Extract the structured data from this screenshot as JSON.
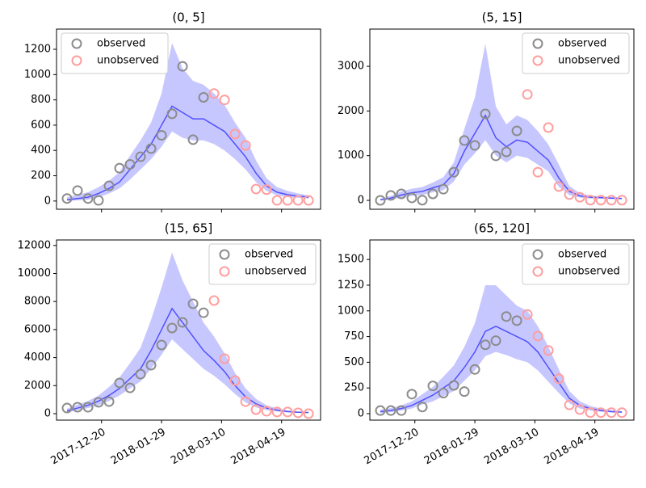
{
  "chart_data": [
    {
      "type": "scatter",
      "title": "(0, 5]",
      "x": [
        "2017-11-27",
        "2017-12-04",
        "2017-12-11",
        "2017-12-18",
        "2017-12-25",
        "2018-01-01",
        "2018-01-08",
        "2018-01-15",
        "2018-01-22",
        "2018-01-29",
        "2018-02-05",
        "2018-02-12",
        "2018-02-19",
        "2018-02-26",
        "2018-03-05",
        "2018-03-12",
        "2018-03-19",
        "2018-03-26",
        "2018-04-02",
        "2018-04-09",
        "2018-04-16",
        "2018-04-23",
        "2018-04-30",
        "2018-05-07"
      ],
      "series": [
        {
          "name": "observed",
          "color": "#8c8c8c",
          "values": [
            20,
            83,
            20,
            5,
            120,
            260,
            290,
            350,
            415,
            520,
            690,
            1065,
            485,
            820,
            null,
            null,
            null,
            null,
            null,
            null,
            null,
            null,
            null,
            null
          ]
        },
        {
          "name": "unobserved",
          "color": "#ff9e9e",
          "values": [
            null,
            null,
            null,
            null,
            null,
            null,
            null,
            null,
            null,
            null,
            null,
            null,
            null,
            null,
            850,
            800,
            530,
            440,
            95,
            90,
            5,
            5,
            5,
            5
          ]
        }
      ],
      "band": {
        "color": "#0000ff",
        "lower": [
          0,
          5,
          10,
          30,
          60,
          100,
          170,
          250,
          330,
          430,
          550,
          500,
          480,
          480,
          450,
          400,
          330,
          250,
          150,
          80,
          45,
          30,
          25,
          20
        ],
        "values": [
          10,
          20,
          30,
          60,
          100,
          150,
          250,
          350,
          450,
          600,
          750,
          700,
          650,
          650,
          600,
          550,
          450,
          350,
          220,
          120,
          70,
          50,
          40,
          30
        ],
        "upper": [
          30,
          50,
          70,
          110,
          160,
          230,
          360,
          480,
          620,
          850,
          1250,
          1050,
          950,
          920,
          850,
          760,
          620,
          500,
          320,
          180,
          110,
          80,
          60,
          45
        ]
      },
      "xlim": [
        "2017-11-20",
        "2018-05-15"
      ],
      "xticks": [
        "2017-12-20",
        "2018-01-29",
        "2018-03-10",
        "2018-04-19"
      ],
      "xtick_labels": false,
      "ylim": [
        -65,
        1360
      ],
      "yticks": [
        0,
        200,
        400,
        600,
        800,
        1000,
        1200
      ],
      "legend": "upper left"
    },
    {
      "type": "scatter",
      "title": "(5, 15]",
      "x": [
        "2017-11-27",
        "2017-12-04",
        "2017-12-11",
        "2017-12-18",
        "2017-12-25",
        "2018-01-01",
        "2018-01-08",
        "2018-01-15",
        "2018-01-22",
        "2018-01-29",
        "2018-02-05",
        "2018-02-12",
        "2018-02-19",
        "2018-02-26",
        "2018-03-05",
        "2018-03-12",
        "2018-03-19",
        "2018-03-26",
        "2018-04-02",
        "2018-04-09",
        "2018-04-16",
        "2018-04-23",
        "2018-04-30",
        "2018-05-07"
      ],
      "series": [
        {
          "name": "observed",
          "color": "#8c8c8c",
          "values": [
            0,
            110,
            145,
            55,
            5,
            145,
            250,
            630,
            1340,
            1230,
            1935,
            995,
            1085,
            1555,
            null,
            null,
            null,
            null,
            null,
            null,
            null,
            null,
            null,
            null
          ]
        },
        {
          "name": "unobserved",
          "color": "#ff9e9e",
          "values": [
            null,
            null,
            null,
            null,
            null,
            null,
            null,
            null,
            null,
            null,
            null,
            null,
            null,
            null,
            2370,
            630,
            1630,
            310,
            130,
            70,
            5,
            5,
            5,
            5
          ]
        }
      ],
      "band": {
        "color": "#0000ff",
        "lower": [
          0,
          20,
          60,
          100,
          120,
          180,
          230,
          420,
          800,
          1050,
          1350,
          1000,
          850,
          1000,
          950,
          800,
          650,
          300,
          120,
          60,
          40,
          35,
          30,
          25
        ],
        "values": [
          10,
          50,
          120,
          170,
          200,
          280,
          350,
          600,
          1100,
          1500,
          1900,
          1400,
          1200,
          1350,
          1300,
          1100,
          900,
          500,
          200,
          100,
          70,
          60,
          50,
          40
        ],
        "upper": [
          40,
          100,
          200,
          260,
          300,
          400,
          520,
          850,
          1600,
          2300,
          3500,
          2100,
          1700,
          1900,
          1800,
          1550,
          1250,
          800,
          320,
          160,
          110,
          90,
          75,
          60
        ]
      },
      "xlim": [
        "2017-11-20",
        "2018-05-15"
      ],
      "xticks": [
        "2017-12-20",
        "2018-01-29",
        "2018-03-10",
        "2018-04-19"
      ],
      "xtick_labels": false,
      "ylim": [
        -199,
        3833
      ],
      "yticks": [
        0,
        1000,
        2000,
        3000
      ],
      "legend": "upper right"
    },
    {
      "type": "scatter",
      "title": "(15, 65]",
      "x": [
        "2017-11-27",
        "2017-12-04",
        "2017-12-11",
        "2017-12-18",
        "2017-12-25",
        "2018-01-01",
        "2018-01-08",
        "2018-01-15",
        "2018-01-22",
        "2018-01-29",
        "2018-02-05",
        "2018-02-12",
        "2018-02-19",
        "2018-02-26",
        "2018-03-05",
        "2018-03-12",
        "2018-03-19",
        "2018-03-26",
        "2018-04-02",
        "2018-04-09",
        "2018-04-16",
        "2018-04-23",
        "2018-04-30",
        "2018-05-07"
      ],
      "series": [
        {
          "name": "observed",
          "color": "#8c8c8c",
          "values": [
            400,
            460,
            460,
            810,
            860,
            2190,
            1840,
            2820,
            3460,
            4900,
            6110,
            6510,
            7840,
            7200,
            null,
            null,
            null,
            null,
            null,
            null,
            null,
            null,
            null,
            null
          ]
        },
        {
          "name": "unobserved",
          "color": "#ff9e9e",
          "values": [
            null,
            null,
            null,
            null,
            null,
            null,
            null,
            null,
            null,
            null,
            null,
            null,
            null,
            null,
            8070,
            3920,
            2360,
            860,
            290,
            170,
            120,
            120,
            60,
            0
          ]
        }
      ],
      "band": {
        "color": "#0000ff",
        "lower": [
          100,
          250,
          400,
          600,
          900,
          1300,
          1800,
          2300,
          3200,
          4200,
          5300,
          4600,
          3900,
          3200,
          2700,
          2100,
          1400,
          800,
          450,
          250,
          150,
          90,
          60,
          50
        ],
        "values": [
          200,
          400,
          600,
          900,
          1300,
          1800,
          2500,
          3200,
          4500,
          6000,
          7500,
          6500,
          5500,
          4500,
          3800,
          3000,
          2000,
          1200,
          700,
          400,
          250,
          150,
          100,
          80
        ],
        "upper": [
          350,
          650,
          900,
          1300,
          1900,
          2600,
          3600,
          4700,
          6700,
          9000,
          11500,
          9500,
          8000,
          6500,
          5500,
          4300,
          2900,
          1800,
          1050,
          600,
          380,
          230,
          160,
          120
        ]
      },
      "xlim": [
        "2017-11-20",
        "2018-05-15"
      ],
      "xticks": [
        "2017-12-20",
        "2018-01-29",
        "2018-03-10",
        "2018-04-19"
      ],
      "xtick_labels": true,
      "ylim": [
        -461,
        12392
      ],
      "yticks": [
        0,
        2000,
        4000,
        6000,
        8000,
        10000,
        12000
      ],
      "legend": "upper right"
    },
    {
      "type": "scatter",
      "title": "(65, 120]",
      "x": [
        "2017-11-27",
        "2017-12-04",
        "2017-12-11",
        "2017-12-18",
        "2017-12-25",
        "2018-01-01",
        "2018-01-08",
        "2018-01-15",
        "2018-01-22",
        "2018-01-29",
        "2018-02-05",
        "2018-02-12",
        "2018-02-19",
        "2018-02-26",
        "2018-03-05",
        "2018-03-12",
        "2018-03-19",
        "2018-03-26",
        "2018-04-02",
        "2018-04-09",
        "2018-04-16",
        "2018-04-23",
        "2018-04-30",
        "2018-05-07"
      ],
      "series": [
        {
          "name": "observed",
          "color": "#8c8c8c",
          "values": [
            30,
            30,
            30,
            190,
            65,
            270,
            200,
            275,
            215,
            430,
            670,
            710,
            945,
            905,
            null,
            null,
            null,
            null,
            null,
            null,
            null,
            null,
            null,
            null
          ]
        },
        {
          "name": "unobserved",
          "color": "#ff9e9e",
          "values": [
            null,
            null,
            null,
            null,
            null,
            null,
            null,
            null,
            null,
            null,
            null,
            null,
            null,
            null,
            965,
            755,
            615,
            340,
            85,
            40,
            10,
            10,
            10,
            10
          ]
        }
      ],
      "band": {
        "color": "#0000ff",
        "lower": [
          5,
          15,
          30,
          50,
          90,
          120,
          170,
          220,
          320,
          420,
          560,
          600,
          570,
          530,
          500,
          420,
          310,
          200,
          100,
          50,
          30,
          20,
          12,
          8
        ],
        "values": [
          20,
          30,
          50,
          80,
          130,
          180,
          250,
          320,
          450,
          600,
          800,
          850,
          800,
          750,
          700,
          600,
          450,
          300,
          150,
          80,
          50,
          30,
          20,
          15
        ],
        "upper": [
          40,
          55,
          80,
          120,
          190,
          260,
          360,
          470,
          650,
          880,
          1250,
          1250,
          1150,
          1050,
          1000,
          850,
          650,
          430,
          220,
          120,
          75,
          50,
          35,
          25
        ]
      },
      "xlim": [
        "2017-11-20",
        "2018-05-15"
      ],
      "xticks": [
        "2017-12-20",
        "2018-01-29",
        "2018-03-10",
        "2018-04-19"
      ],
      "xtick_labels": true,
      "ylim": [
        -63,
        1690
      ],
      "yticks": [
        0,
        250,
        500,
        750,
        1000,
        1250,
        1500
      ],
      "legend": "upper right"
    }
  ]
}
